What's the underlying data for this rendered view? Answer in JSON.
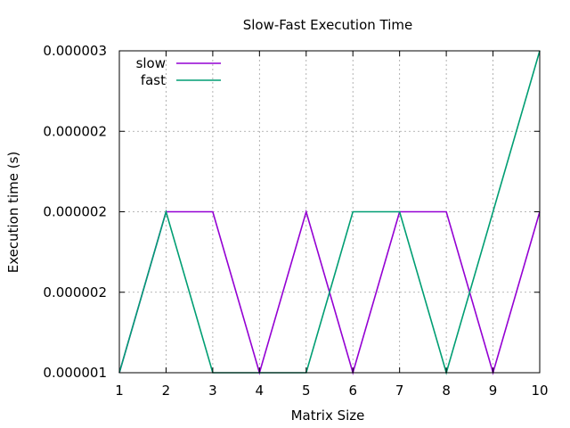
{
  "chart_data": {
    "type": "line",
    "title": "Slow-Fast Execution Time",
    "xlabel": "Matrix Size",
    "ylabel": "Execution time (s)",
    "x": [
      1,
      2,
      3,
      4,
      5,
      6,
      7,
      8,
      9,
      10
    ],
    "xlim": [
      1,
      10
    ],
    "ylim": [
      1e-06,
      3e-06
    ],
    "grid": true,
    "legend_position": "top-left",
    "x_ticks": [
      "1",
      "2",
      "3",
      "4",
      "5",
      "6",
      "7",
      "8",
      "9",
      "10"
    ],
    "y_ticks": [
      {
        "value": 1e-06,
        "label": "0.000001"
      },
      {
        "value": 1.5e-06,
        "label": "0.000002"
      },
      {
        "value": 2e-06,
        "label": "0.000002"
      },
      {
        "value": 2.5e-06,
        "label": "0.000002"
      },
      {
        "value": 3e-06,
        "label": "0.000003"
      }
    ],
    "series": [
      {
        "name": "slow",
        "color": "#9400d3",
        "values": [
          1e-06,
          2e-06,
          2e-06,
          1e-06,
          2e-06,
          1e-06,
          2e-06,
          2e-06,
          1e-06,
          2e-06
        ]
      },
      {
        "name": "fast",
        "color": "#009e73",
        "values": [
          1e-06,
          2e-06,
          1e-06,
          1e-06,
          1e-06,
          2e-06,
          2e-06,
          1e-06,
          2e-06,
          3e-06
        ]
      }
    ]
  }
}
